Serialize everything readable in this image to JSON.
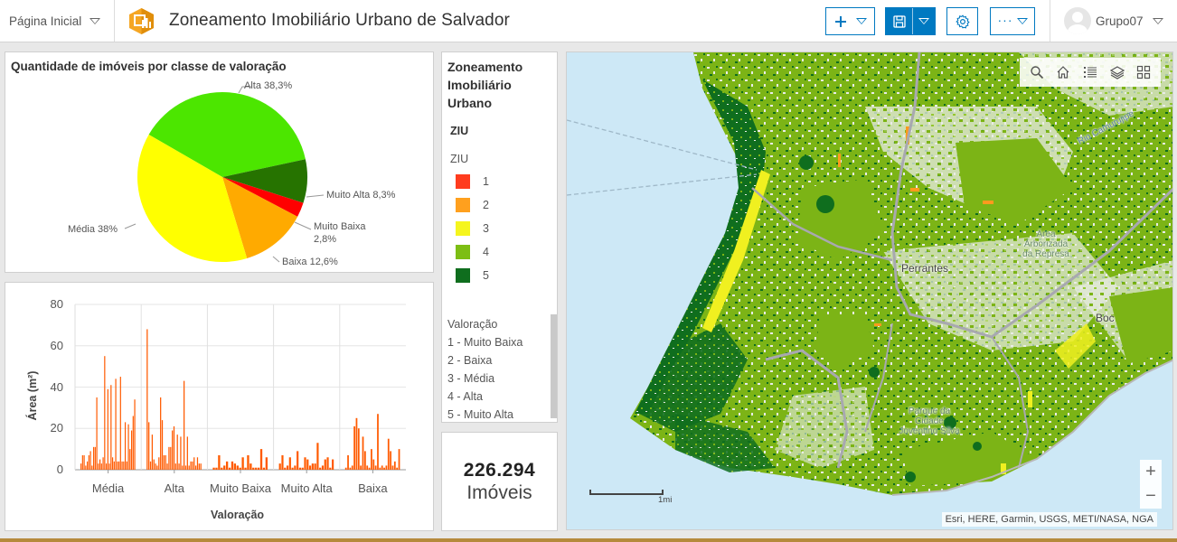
{
  "header": {
    "home_label": "Página Inicial",
    "app_title": "Zoneamento Imobiliário Urbano de Salvador",
    "toolbar": {
      "add_icon": "plus-icon",
      "save_icon": "floppy-disk-icon",
      "settings_icon": "gear-icon",
      "more_icon": "ellipsis-icon"
    },
    "user_name": "Grupo07"
  },
  "pie_panel": {
    "title": "Quantidade de imóveis por classe de valoração",
    "labels": {
      "alta": "Alta 38,3%",
      "muito_alta": "Muito Alta 8,3%",
      "muito_baixa_1": "Muito Baixa",
      "muito_baixa_2": "2,8%",
      "baixa": "Baixa 12,6%",
      "media": "Média 38%"
    }
  },
  "bar_panel": {
    "ylabel": "Área (m²)",
    "xlabel": "Valoração",
    "yticks": [
      "0",
      "20",
      "40",
      "60",
      "80"
    ],
    "categories": [
      "Média",
      "Alta",
      "Muito Baixa",
      "Muito Alta",
      "Baixa"
    ]
  },
  "legend": {
    "title": "Zoneamento Imobiliário Urbano",
    "layer": "ZIU",
    "field": "ZIU",
    "items": [
      {
        "label": "1",
        "color": "#ff3c1e"
      },
      {
        "label": "2",
        "color": "#ffa01e"
      },
      {
        "label": "3",
        "color": "#f5f51e"
      },
      {
        "label": "4",
        "color": "#7dbe14"
      },
      {
        "label": "5",
        "color": "#0f6e1e"
      }
    ],
    "desc_title": "Valoração",
    "desc_items": [
      "1 - Muito Baixa",
      "2 - Baixa",
      "3 - Média",
      "4 - Alta",
      "5 - Muito Alta"
    ]
  },
  "indicator": {
    "value": "226.294",
    "label": "Imóveis"
  },
  "map": {
    "tools": [
      "search-icon",
      "home-icon",
      "legend-list-icon",
      "layers-icon",
      "basemap-gallery-icon"
    ],
    "zoom_in": "+",
    "zoom_out": "−",
    "scale_label": "1mi",
    "attribution": "Esri, HERE, Garmin, USGS, METI/NASA, NGA",
    "place_labels": {
      "perrantes": "Perrantes",
      "area_arborizada": "Área Arborizada da Represa",
      "parque": "Parque da Cidade Joventino Silva",
      "rio": "Rio Camurujipe",
      "boca": "Boc"
    }
  },
  "chart_data": [
    {
      "type": "pie",
      "title": "Quantidade de imóveis por classe de valoração",
      "categories": [
        "Alta",
        "Muito Alta",
        "Muito Baixa",
        "Baixa",
        "Média"
      ],
      "values": [
        38.3,
        8.3,
        2.8,
        12.6,
        38.0
      ],
      "colors": [
        "#4ce600",
        "#267300",
        "#ff0000",
        "#ffaa00",
        "#ffff00"
      ],
      "unit": "%"
    },
    {
      "type": "bar",
      "title": "",
      "xlabel": "Valoração",
      "ylabel": "Área (m²)",
      "ylim": [
        0,
        80
      ],
      "yticks": [
        0,
        20,
        40,
        60,
        80
      ],
      "grid": true,
      "categories": [
        "Média",
        "Alta",
        "Muito Baixa",
        "Muito Alta",
        "Baixa"
      ],
      "color": "#ff5a00",
      "series": [
        {
          "name": "Média",
          "values": [
            3,
            7,
            7,
            2,
            4,
            7,
            9,
            2,
            11,
            11,
            35,
            3,
            5,
            3,
            6,
            55,
            3,
            39,
            3,
            41,
            6,
            4,
            44,
            4,
            4,
            45,
            4,
            4,
            23,
            4,
            22,
            10,
            19,
            26,
            34
          ]
        },
        {
          "name": "Alta",
          "values": [
            68,
            23,
            4,
            17,
            5,
            3,
            2,
            6,
            35,
            24,
            7,
            7,
            3,
            11,
            11,
            19,
            21,
            3,
            17,
            3,
            16,
            2,
            43,
            2,
            16,
            2,
            4,
            4,
            6,
            2,
            6,
            3,
            3
          ]
        },
        {
          "name": "Muito Baixa",
          "values": [
            1,
            1,
            7,
            1,
            2,
            4,
            1,
            4,
            3,
            2,
            1,
            6,
            1,
            7,
            3,
            1,
            1,
            1,
            10,
            1,
            6
          ]
        },
        {
          "name": "Muito Alta",
          "values": [
            3,
            7,
            1,
            2,
            6,
            1,
            2,
            9,
            1,
            1,
            6,
            5,
            2,
            3,
            3,
            13,
            1,
            2,
            5,
            6,
            1,
            5
          ]
        },
        {
          "name": "Baixa",
          "values": [
            1,
            7,
            1,
            2,
            21,
            25,
            20,
            2,
            16,
            9,
            2,
            1,
            10,
            5,
            2,
            27,
            1,
            2,
            1,
            2,
            15,
            9,
            2,
            4,
            1,
            10
          ]
        }
      ]
    }
  ]
}
